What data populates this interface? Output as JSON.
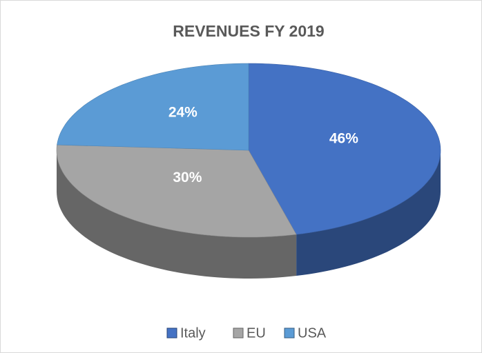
{
  "chart_data": {
    "type": "pie",
    "title": "REVENUES FY 2019",
    "categories": [
      "Italy",
      "EU",
      "USA"
    ],
    "values": [
      46,
      30,
      24
    ],
    "value_labels": [
      "46%",
      "30%",
      "24%"
    ],
    "colors": [
      "#4472c4",
      "#a5a5a5",
      "#5b9bd5"
    ],
    "legend": "bottom"
  }
}
